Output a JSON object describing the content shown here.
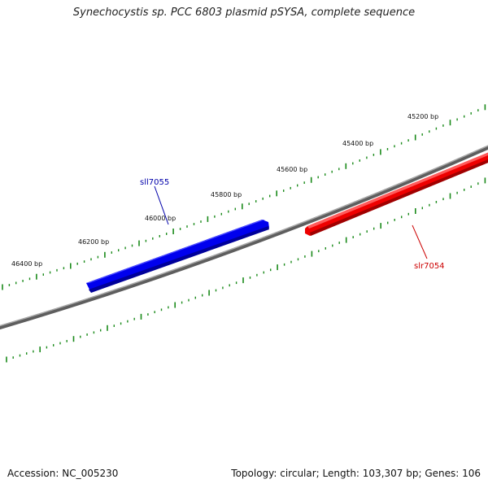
{
  "title": "Synechocystis sp. PCC 6803 plasmid pSYSA, complete sequence",
  "footer": {
    "accession": "Accession: NC_005230",
    "summary": "Topology: circular; Length: 103,307 bp; Genes: 106"
  },
  "ruler": {
    "labels": [
      "45200 bp",
      "45400 bp",
      "45600 bp",
      "45800 bp",
      "46000 bp",
      "46200 bp",
      "46400 bp"
    ],
    "tick_color": "#1a8a1a"
  },
  "backbone_color": "#888888",
  "genes": [
    {
      "name": "sll7055",
      "strand": "forward",
      "color": "#0000ee",
      "label_color": "#0000aa"
    },
    {
      "name": "slr7054",
      "strand": "reverse",
      "color": "#ee0000",
      "label_color": "#cc0000"
    }
  ]
}
